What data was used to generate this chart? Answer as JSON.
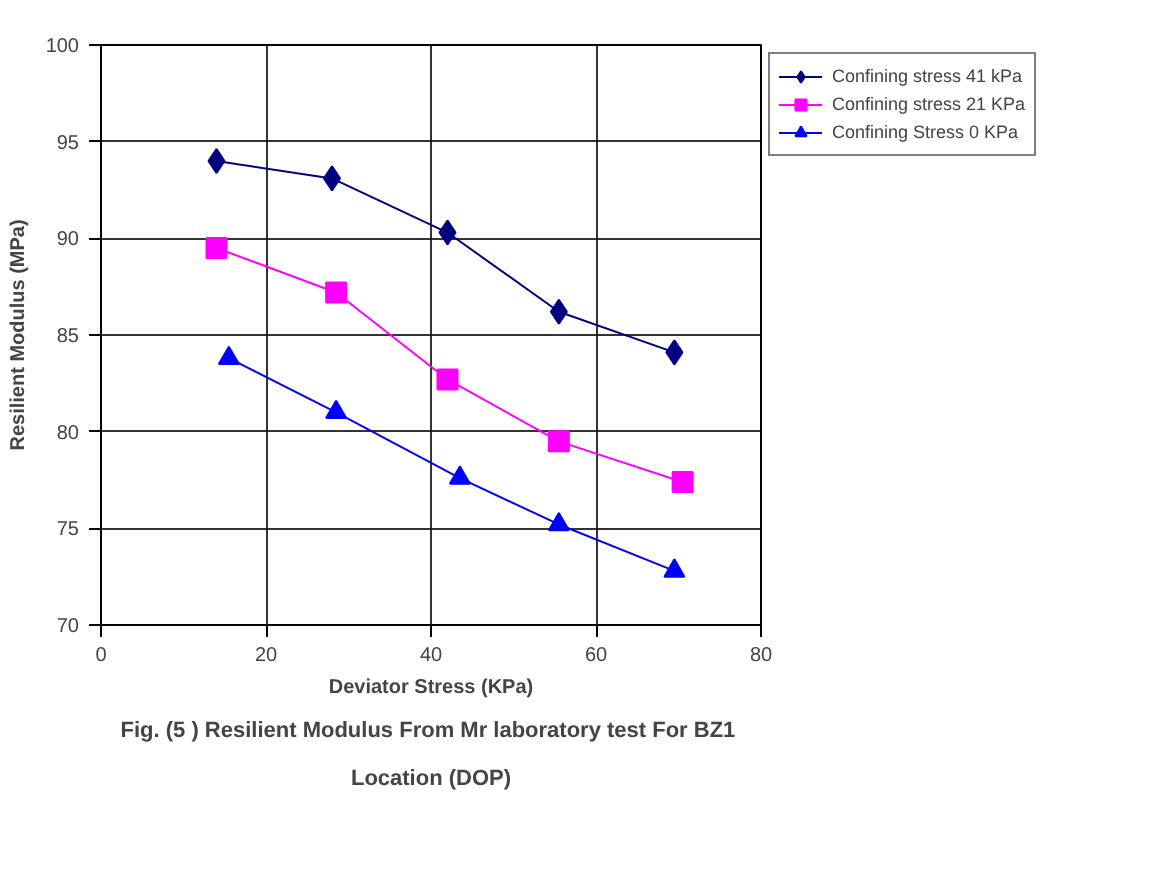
{
  "chart_data": {
    "type": "line",
    "xlabel": "Deviator Stress (KPa)",
    "ylabel": "Resilient Modulus (MPa)",
    "annotations": [
      "Fig. (5 ) Resilient Modulus From Mr laboratory test For  BZ1\nLocation (DOP)"
    ],
    "xlim": [
      0,
      80
    ],
    "xticks": [
      0,
      20,
      40,
      60,
      80
    ],
    "ylim": [
      70,
      100
    ],
    "yticks": [
      70,
      75,
      80,
      85,
      90,
      95,
      100
    ],
    "grid": true,
    "legend": "top right",
    "series": [
      {
        "name": "Confining stress 41 kPa",
        "color": "#000080",
        "marker": "diamond",
        "x": [
          14,
          28,
          42,
          55.5,
          69.5
        ],
        "values": [
          94.0,
          93.1,
          90.3,
          86.2,
          84.1
        ]
      },
      {
        "name": "Confining stress 21 KPa",
        "color": "#ff00ff",
        "marker": "square",
        "x": [
          14,
          28.5,
          42,
          55.5,
          70.5
        ],
        "values": [
          89.5,
          87.2,
          82.7,
          79.5,
          77.4
        ]
      },
      {
        "name": "Confining Stress 0 KPa",
        "color": "#0000ff",
        "marker": "triangle",
        "x": [
          15.5,
          28.5,
          43.5,
          55.5,
          69.5
        ],
        "values": [
          83.8,
          81.0,
          77.6,
          75.2,
          72.8
        ]
      }
    ]
  }
}
